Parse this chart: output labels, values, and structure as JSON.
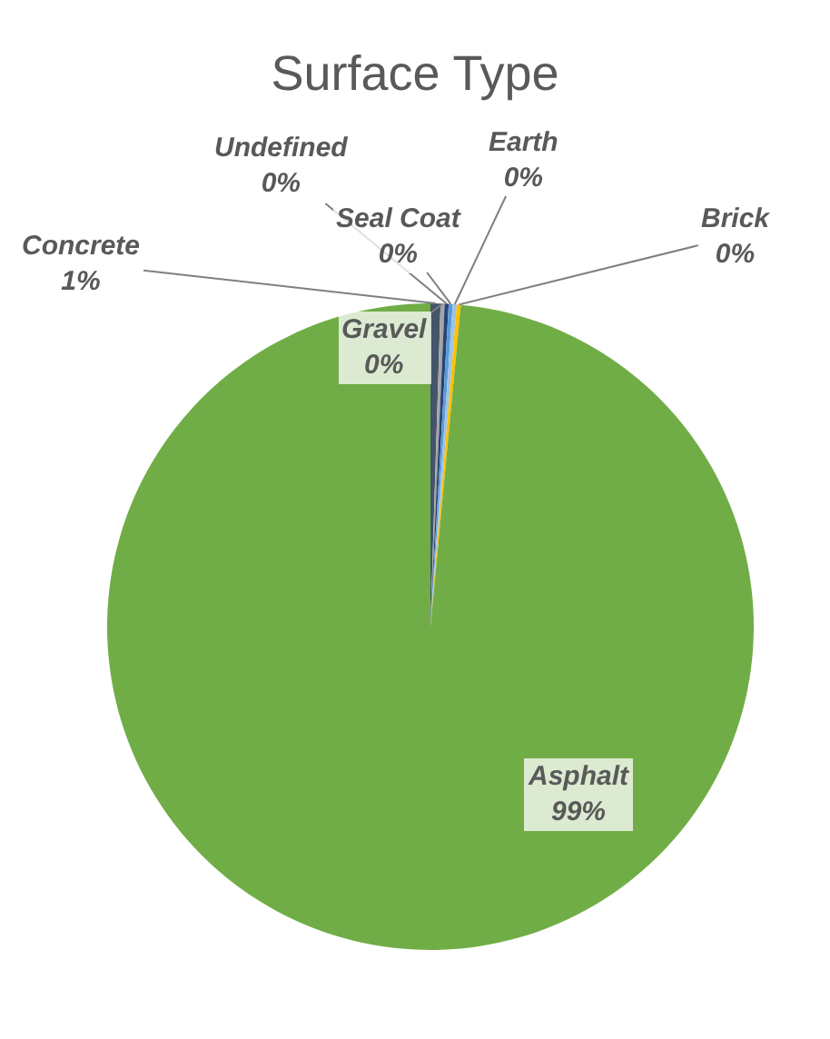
{
  "chart_data": {
    "type": "pie",
    "title": "Surface Type",
    "categories": [
      "Concrete",
      "Gravel",
      "Undefined",
      "Seal Coat",
      "Earth",
      "Brick",
      "Asphalt"
    ],
    "values": [
      0.5,
      0.2,
      0.2,
      0.2,
      0.2,
      0.2,
      98.5
    ],
    "value_labels": [
      "1%",
      "0%",
      "0%",
      "0%",
      "0%",
      "0%",
      "99%"
    ],
    "colors": [
      "#44546a",
      "#a5a5a5",
      "#264478",
      "#5b9bd5",
      "#9dc3e6",
      "#ffc000",
      "#70ad47"
    ],
    "legend": false
  }
}
